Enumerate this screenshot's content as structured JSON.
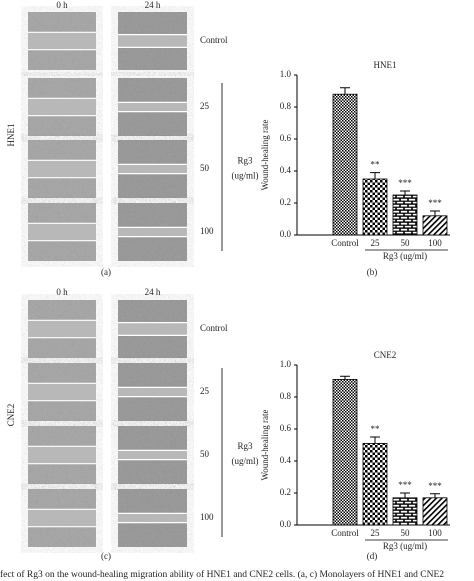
{
  "figures": [
    {
      "side_label": "HNE1",
      "columns": [
        "0 h",
        "24 h"
      ],
      "rows": [
        "Control",
        "25",
        "50",
        "100"
      ],
      "treatment": "Rg3",
      "unit": "(ug/ml)",
      "panel": "(a)"
    },
    {
      "side_label": "CNE2",
      "columns": [
        "0 h",
        "24 h"
      ],
      "rows": [
        "Control",
        "25",
        "50",
        "100"
      ],
      "treatment": "Rg3",
      "unit": "(ug/ml)",
      "panel": "(c)"
    }
  ],
  "chart_data": [
    {
      "type": "bar",
      "title": "HNE1",
      "y_label": "Wound-healing rate",
      "x_label": "Rg3 (ug/ml)",
      "panel": "(b)",
      "categories": [
        "Control",
        "25",
        "50",
        "100"
      ],
      "values": [
        0.88,
        0.35,
        0.25,
        0.12
      ],
      "errors": [
        0.04,
        0.04,
        0.025,
        0.03
      ],
      "annotations": [
        null,
        "**",
        "***",
        "***"
      ],
      "color": "#000000",
      "ylim": [
        0,
        1
      ],
      "yticks": [
        {
          "value": 0,
          "label": "0.0"
        },
        0.2,
        0.4,
        0.6,
        0.8,
        {
          "value": 1,
          "label": "1.0"
        }
      ]
    },
    {
      "type": "bar",
      "title": "CNE2",
      "y_label": "Wound-healing rate",
      "x_label": "Rg3 (ug/ml)",
      "panel": "(d)",
      "categories": [
        "Control",
        "25",
        "50",
        "100"
      ],
      "values": [
        0.91,
        0.51,
        0.17,
        0.17
      ],
      "errors": [
        0.02,
        0.04,
        0.03,
        0.025
      ],
      "annotations": [
        null,
        "**",
        "***",
        "***"
      ],
      "color": "#000000",
      "ylim": [
        0,
        1
      ],
      "yticks": [
        {
          "value": 0,
          "label": "0.0"
        },
        0.2,
        0.4,
        0.6,
        0.8,
        {
          "value": 1,
          "label": "1.0"
        }
      ]
    }
  ],
  "caption": "fect of Rg3 on the wound-healing migration ability of HNE1 and CNE2 cells. (a, c) Monolayers of HNE1 and CNE2"
}
